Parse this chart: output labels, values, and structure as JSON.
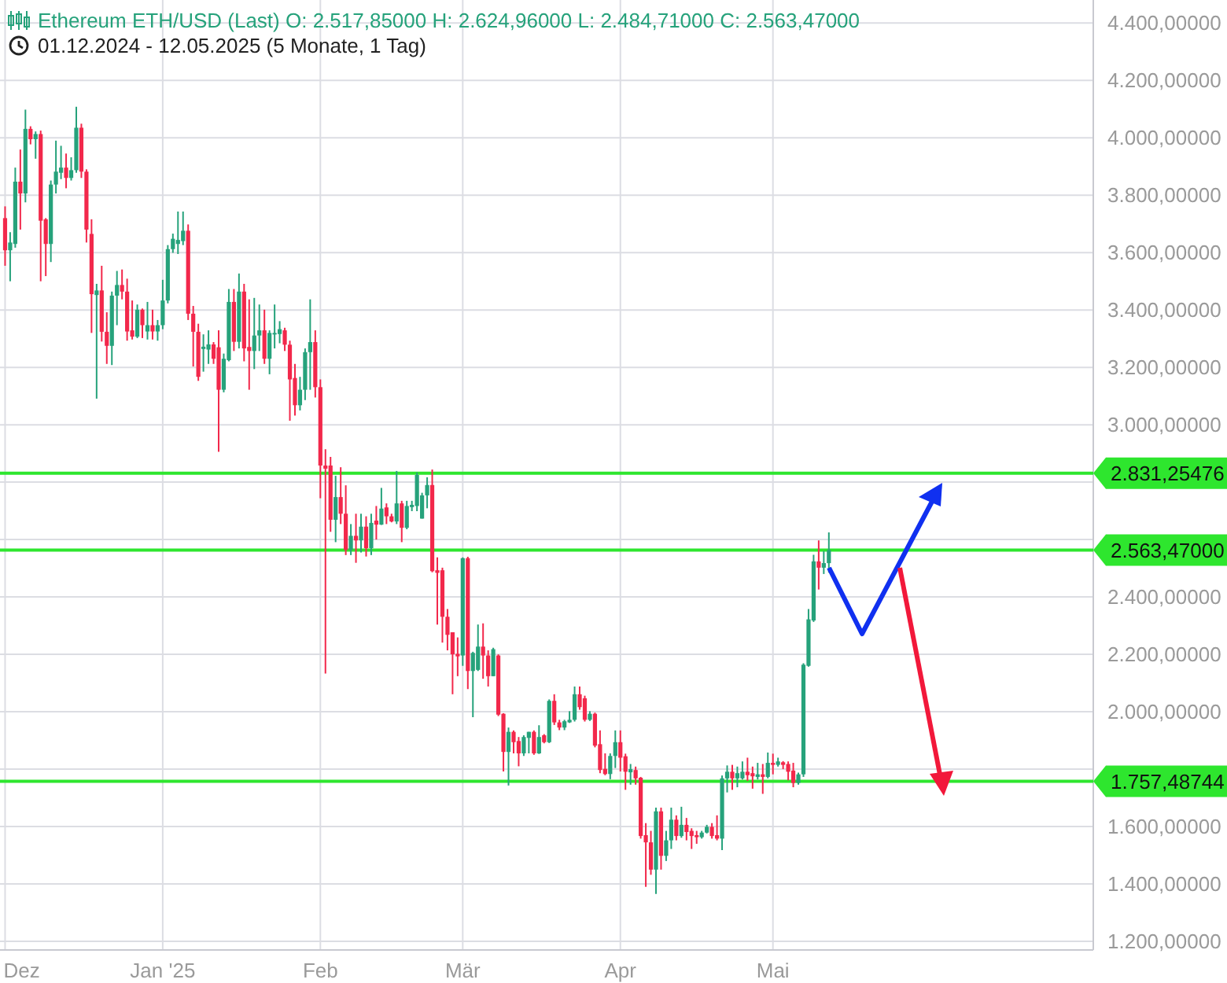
{
  "chart_data": {
    "type": "candlestick",
    "title": "Ethereum ETH/USD (Last)  O: 2.517,85000  H: 2.624,96000  L: 2.484,71000  C: 2.563,47000",
    "subtitle": "01.12.2024 - 12.05.2025  (5 Monate, 1 Tag)",
    "x": [
      "2024-12-01",
      "2024-12-02",
      "2024-12-03",
      "2024-12-04",
      "2024-12-05",
      "2024-12-06",
      "2024-12-07",
      "2024-12-08",
      "2024-12-09",
      "2024-12-10",
      "2024-12-11",
      "2024-12-12",
      "2024-12-13",
      "2024-12-14",
      "2024-12-15",
      "2024-12-16",
      "2024-12-17",
      "2024-12-18",
      "2024-12-19",
      "2024-12-20",
      "2024-12-21",
      "2024-12-22",
      "2024-12-23",
      "2024-12-24",
      "2024-12-25",
      "2024-12-26",
      "2024-12-27",
      "2024-12-28",
      "2024-12-29",
      "2024-12-30",
      "2024-12-31",
      "2025-01-01",
      "2025-01-02",
      "2025-01-03",
      "2025-01-04",
      "2025-01-05",
      "2025-01-06",
      "2025-01-07",
      "2025-01-08",
      "2025-01-09",
      "2025-01-10",
      "2025-01-11",
      "2025-01-12",
      "2025-01-13",
      "2025-01-14",
      "2025-01-15",
      "2025-01-16",
      "2025-01-17",
      "2025-01-18",
      "2025-01-19",
      "2025-01-20",
      "2025-01-21",
      "2025-01-22",
      "2025-01-23",
      "2025-01-24",
      "2025-01-25",
      "2025-01-26",
      "2025-01-27",
      "2025-01-28",
      "2025-01-29",
      "2025-01-30",
      "2025-01-31",
      "2025-02-01",
      "2025-02-02",
      "2025-02-03",
      "2025-02-04",
      "2025-02-05",
      "2025-02-06",
      "2025-02-07",
      "2025-02-08",
      "2025-02-09",
      "2025-02-10",
      "2025-02-11",
      "2025-02-12",
      "2025-02-13",
      "2025-02-14",
      "2025-02-15",
      "2025-02-16",
      "2025-02-17",
      "2025-02-18",
      "2025-02-19",
      "2025-02-20",
      "2025-02-21",
      "2025-02-22",
      "2025-02-23",
      "2025-02-24",
      "2025-02-25",
      "2025-02-26",
      "2025-02-27",
      "2025-02-28",
      "2025-03-01",
      "2025-03-02",
      "2025-03-03",
      "2025-03-04",
      "2025-03-05",
      "2025-03-06",
      "2025-03-07",
      "2025-03-08",
      "2025-03-09",
      "2025-03-10",
      "2025-03-11",
      "2025-03-12",
      "2025-03-13",
      "2025-03-14",
      "2025-03-15",
      "2025-03-16",
      "2025-03-17",
      "2025-03-18",
      "2025-03-19",
      "2025-03-20",
      "2025-03-21",
      "2025-03-22",
      "2025-03-23",
      "2025-03-24",
      "2025-03-25",
      "2025-03-26",
      "2025-03-27",
      "2025-03-28",
      "2025-03-29",
      "2025-03-30",
      "2025-03-31",
      "2025-04-01",
      "2025-04-02",
      "2025-04-03",
      "2025-04-04",
      "2025-04-05",
      "2025-04-06",
      "2025-04-07",
      "2025-04-08",
      "2025-04-09",
      "2025-04-10",
      "2025-04-11",
      "2025-04-12",
      "2025-04-13",
      "2025-04-14",
      "2025-04-15",
      "2025-04-16",
      "2025-04-17",
      "2025-04-18",
      "2025-04-19",
      "2025-04-20",
      "2025-04-21",
      "2025-04-22",
      "2025-04-23",
      "2025-04-24",
      "2025-04-25",
      "2025-04-26",
      "2025-04-27",
      "2025-04-28",
      "2025-04-29",
      "2025-04-30",
      "2025-05-01",
      "2025-05-02",
      "2025-05-03",
      "2025-05-04",
      "2025-05-05",
      "2025-05-06",
      "2025-05-07",
      "2025-05-08",
      "2025-05-09",
      "2025-05-10",
      "2025-05-11",
      "2025-05-12"
    ],
    "ohlc": [
      [
        3720,
        3761,
        3554,
        3608
      ],
      [
        3608,
        3671,
        3500,
        3635
      ],
      [
        3630,
        3896,
        3617,
        3847
      ],
      [
        3847,
        3959,
        3680,
        3806
      ],
      [
        3806,
        4098,
        3775,
        4031
      ],
      [
        4031,
        4040,
        3977,
        3995
      ],
      [
        3995,
        4022,
        3927,
        4013
      ],
      [
        4013,
        4025,
        3500,
        3711
      ],
      [
        3716,
        3720,
        3518,
        3630
      ],
      [
        3630,
        3851,
        3567,
        3837
      ],
      [
        3837,
        3990,
        3806,
        3882
      ],
      [
        3878,
        3972,
        3856,
        3896
      ],
      [
        3896,
        3945,
        3824,
        3860
      ],
      [
        3860,
        3932,
        3851,
        3887
      ],
      [
        3887,
        4108,
        3878,
        4035
      ],
      [
        4035,
        4049,
        3860,
        3882
      ],
      [
        3882,
        3890,
        3635,
        3680
      ],
      [
        3665,
        3716,
        3320,
        3455
      ],
      [
        3452,
        3491,
        3091,
        3468
      ],
      [
        3468,
        3554,
        3290,
        3324
      ],
      [
        3324,
        3392,
        3212,
        3275
      ],
      [
        3275,
        3464,
        3208,
        3450
      ],
      [
        3450,
        3536,
        3347,
        3487
      ],
      [
        3487,
        3541,
        3437,
        3464
      ],
      [
        3464,
        3509,
        3293,
        3325
      ],
      [
        3329,
        3433,
        3297,
        3307
      ],
      [
        3307,
        3419,
        3302,
        3401
      ],
      [
        3401,
        3405,
        3302,
        3347
      ],
      [
        3325,
        3428,
        3297,
        3347
      ],
      [
        3347,
        3401,
        3297,
        3325
      ],
      [
        3325,
        3365,
        3293,
        3347
      ],
      [
        3347,
        3505,
        3333,
        3433
      ],
      [
        3433,
        3626,
        3423,
        3612
      ],
      [
        3612,
        3666,
        3599,
        3648
      ],
      [
        3630,
        3743,
        3595,
        3644
      ],
      [
        3640,
        3743,
        3626,
        3676
      ],
      [
        3676,
        3698,
        3365,
        3387
      ],
      [
        3387,
        3414,
        3203,
        3324
      ],
      [
        3324,
        3352,
        3153,
        3167
      ],
      [
        3264,
        3315,
        3185,
        3272
      ],
      [
        3262,
        3329,
        3212,
        3280
      ],
      [
        3280,
        3288,
        3212,
        3230
      ],
      [
        3270,
        3329,
        2906,
        3122
      ],
      [
        3122,
        3248,
        3113,
        3230
      ],
      [
        3225,
        3473,
        3221,
        3428
      ],
      [
        3428,
        3473,
        3257,
        3289
      ],
      [
        3289,
        3527,
        3266,
        3464
      ],
      [
        3464,
        3491,
        3221,
        3266
      ],
      [
        3271,
        3437,
        3122,
        3257
      ],
      [
        3257,
        3442,
        3194,
        3311
      ],
      [
        3311,
        3419,
        3257,
        3329
      ],
      [
        3329,
        3401,
        3212,
        3230
      ],
      [
        3230,
        3329,
        3176,
        3320
      ],
      [
        3315,
        3419,
        3266,
        3320
      ],
      [
        3316,
        3361,
        3284,
        3333
      ],
      [
        3329,
        3338,
        3257,
        3279
      ],
      [
        3279,
        3293,
        3014,
        3158
      ],
      [
        3163,
        3212,
        3032,
        3068
      ],
      [
        3068,
        3167,
        3050,
        3122
      ],
      [
        3122,
        3266,
        3086,
        3253
      ],
      [
        3253,
        3437,
        3122,
        3288
      ],
      [
        3288,
        3329,
        3095,
        3131
      ],
      [
        3131,
        3158,
        2744,
        2858
      ],
      [
        2858,
        2915,
        2133,
        2847
      ],
      [
        2858,
        2888,
        2627,
        2669
      ],
      [
        2669,
        2822,
        2591,
        2748
      ],
      [
        2748,
        2852,
        2654,
        2690
      ],
      [
        2690,
        2789,
        2546,
        2564
      ],
      [
        2564,
        2654,
        2546,
        2613
      ],
      [
        2613,
        2690,
        2519,
        2597
      ],
      [
        2597,
        2690,
        2555,
        2645
      ],
      [
        2645,
        2681,
        2541,
        2570
      ],
      [
        2570,
        2690,
        2546,
        2658
      ],
      [
        2666,
        2717,
        2600,
        2652
      ],
      [
        2652,
        2780,
        2651,
        2708
      ],
      [
        2712,
        2726,
        2654,
        2681
      ],
      [
        2681,
        2690,
        2660,
        2663
      ],
      [
        2663,
        2839,
        2654,
        2726
      ],
      [
        2726,
        2735,
        2591,
        2641
      ],
      [
        2641,
        2735,
        2636,
        2717
      ],
      [
        2713,
        2735,
        2699,
        2721
      ],
      [
        2717,
        2834,
        2699,
        2825
      ],
      [
        2673,
        2763,
        2673,
        2754
      ],
      [
        2754,
        2817,
        2709,
        2790
      ],
      [
        2790,
        2844,
        2486,
        2490
      ],
      [
        2493,
        2538,
        2304,
        2484
      ],
      [
        2493,
        2502,
        2241,
        2331
      ],
      [
        2331,
        2358,
        2214,
        2268
      ],
      [
        2277,
        2277,
        2061,
        2200
      ],
      [
        2202,
        2259,
        2124,
        2193
      ],
      [
        2196,
        2538,
        2160,
        2535
      ],
      [
        2535,
        2540,
        2079,
        2142
      ],
      [
        2142,
        2209,
        1981,
        2205
      ],
      [
        2146,
        2304,
        2142,
        2227
      ],
      [
        2227,
        2308,
        2115,
        2196
      ],
      [
        2196,
        2214,
        2088,
        2124
      ],
      [
        2124,
        2223,
        2124,
        2218
      ],
      [
        2196,
        2200,
        1985,
        1990
      ],
      [
        1993,
        1995,
        1792,
        1860
      ],
      [
        1860,
        1945,
        1743,
        1930
      ],
      [
        1930,
        1935,
        1855,
        1894
      ],
      [
        1898,
        1912,
        1810,
        1855
      ],
      [
        1855,
        1918,
        1846,
        1912
      ],
      [
        1909,
        1930,
        1855,
        1930
      ],
      [
        1930,
        1935,
        1850,
        1855
      ],
      [
        1855,
        1953,
        1853,
        1912
      ],
      [
        1918,
        1922,
        1890,
        1894
      ],
      [
        1894,
        2043,
        1891,
        2038
      ],
      [
        2038,
        2061,
        1954,
        1963
      ],
      [
        1963,
        1972,
        1936,
        1945
      ],
      [
        1945,
        1972,
        1936,
        1967
      ],
      [
        1963,
        2002,
        1961,
        1972
      ],
      [
        1972,
        2088,
        1966,
        2061
      ],
      [
        2061,
        2088,
        2007,
        2016
      ],
      [
        2047,
        2056,
        1966,
        1972
      ],
      [
        1972,
        2002,
        1968,
        1993
      ],
      [
        1993,
        1997,
        1876,
        1882
      ],
      [
        1887,
        1935,
        1786,
        1797
      ],
      [
        1801,
        1855,
        1779,
        1783
      ],
      [
        1783,
        1855,
        1765,
        1846
      ],
      [
        1846,
        1935,
        1804,
        1894
      ],
      [
        1894,
        1935,
        1792,
        1840
      ],
      [
        1845,
        1854,
        1728,
        1791
      ],
      [
        1789,
        1818,
        1746,
        1800
      ],
      [
        1797,
        1809,
        1746,
        1768
      ],
      [
        1770,
        1773,
        1558,
        1567
      ],
      [
        1570,
        1612,
        1390,
        1545
      ],
      [
        1545,
        1585,
        1432,
        1450
      ],
      [
        1450,
        1666,
        1365,
        1653
      ],
      [
        1653,
        1666,
        1450,
        1498
      ],
      [
        1498,
        1585,
        1480,
        1552
      ],
      [
        1552,
        1666,
        1522,
        1624
      ],
      [
        1624,
        1639,
        1552,
        1567
      ],
      [
        1567,
        1669,
        1561,
        1606
      ],
      [
        1606,
        1630,
        1552,
        1581
      ],
      [
        1585,
        1594,
        1522,
        1567
      ],
      [
        1570,
        1585,
        1540,
        1563
      ],
      [
        1563,
        1585,
        1558,
        1579
      ],
      [
        1579,
        1606,
        1576,
        1599
      ],
      [
        1599,
        1612,
        1558,
        1567
      ],
      [
        1570,
        1639,
        1552,
        1558
      ],
      [
        1558,
        1778,
        1518,
        1768
      ],
      [
        1768,
        1813,
        1719,
        1791
      ],
      [
        1791,
        1815,
        1728,
        1768
      ],
      [
        1768,
        1809,
        1737,
        1786
      ],
      [
        1768,
        1827,
        1764,
        1791
      ],
      [
        1791,
        1840,
        1759,
        1779
      ],
      [
        1786,
        1809,
        1732,
        1775
      ],
      [
        1773,
        1822,
        1764,
        1782
      ],
      [
        1782,
        1818,
        1714,
        1773
      ],
      [
        1773,
        1858,
        1768,
        1822
      ],
      [
        1822,
        1854,
        1782,
        1815
      ],
      [
        1815,
        1840,
        1809,
        1827
      ],
      [
        1824,
        1828,
        1800,
        1815
      ],
      [
        1818,
        1827,
        1761,
        1791
      ],
      [
        1795,
        1822,
        1737,
        1752
      ],
      [
        1752,
        1788,
        1746,
        1782
      ],
      [
        1782,
        2169,
        1773,
        2164
      ],
      [
        2160,
        2358,
        2157,
        2322
      ],
      [
        2318,
        2547,
        2313,
        2524
      ],
      [
        2524,
        2597,
        2426,
        2502
      ],
      [
        2502,
        2560,
        2480,
        2518
      ],
      [
        2517.85,
        2624.96,
        2484.71,
        2563.47
      ]
    ],
    "xlim": [
      "2024-11-30",
      "2025-07-03"
    ],
    "xticks": [
      {
        "value": "2024-12-01",
        "label": "Dez"
      },
      {
        "value": "2025-01-01",
        "label": "Jan '25"
      },
      {
        "value": "2025-02-01",
        "label": "Feb"
      },
      {
        "value": "2025-03-01",
        "label": "Mär"
      },
      {
        "value": "2025-04-01",
        "label": "Apr"
      },
      {
        "value": "2025-05-01",
        "label": "Mai"
      }
    ],
    "ylim": [
      1170,
      4480
    ],
    "yticks": [
      {
        "value": 1200,
        "label": "1.200,00000"
      },
      {
        "value": 1400,
        "label": "1.400,00000"
      },
      {
        "value": 1600,
        "label": "1.600,00000"
      },
      {
        "value": 1800,
        "label": null
      },
      {
        "value": 2000,
        "label": "2.000,00000"
      },
      {
        "value": 2200,
        "label": "2.200,00000"
      },
      {
        "value": 2400,
        "label": "2.400,00000"
      },
      {
        "value": 2600,
        "label": null
      },
      {
        "value": 2800,
        "label": null
      },
      {
        "value": 3000,
        "label": "3.000,00000"
      },
      {
        "value": 3200,
        "label": "3.200,00000"
      },
      {
        "value": 3400,
        "label": "3.400,00000"
      },
      {
        "value": 3600,
        "label": "3.600,00000"
      },
      {
        "value": 3800,
        "label": "3.800,00000"
      },
      {
        "value": 4000,
        "label": "4.000,00000"
      },
      {
        "value": 4200,
        "label": "4.200,00000"
      },
      {
        "value": 4400,
        "label": "4.400,00000"
      }
    ],
    "grid": true,
    "ref_lines": [
      {
        "axis": "y",
        "value": 2831.25476,
        "label": "2.831,25476",
        "color": "#2ee62e"
      },
      {
        "axis": "y",
        "value": 2563.47,
        "label": "2.563,47000",
        "color": "#2ee62e"
      },
      {
        "axis": "y",
        "value": 1757.48744,
        "label": "1.757,48744",
        "color": "#2ee62e"
      }
    ]
  }
}
